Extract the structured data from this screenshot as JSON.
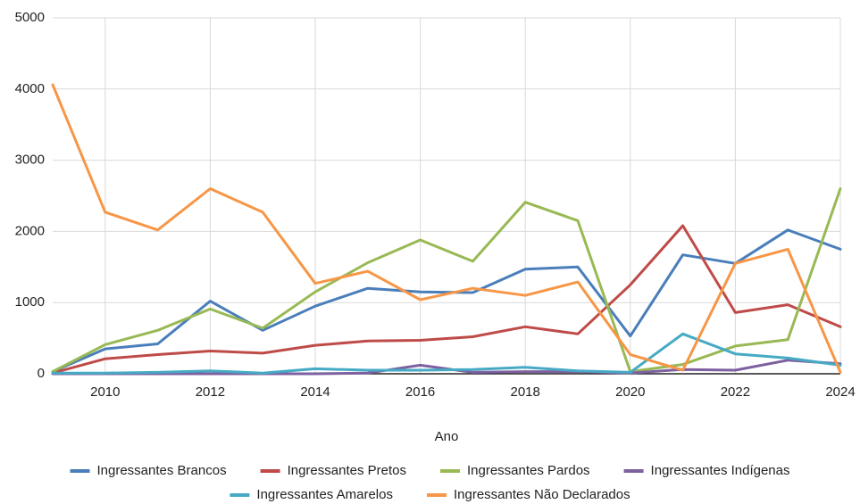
{
  "chart_data": {
    "type": "line",
    "x": [
      2009,
      2010,
      2011,
      2012,
      2013,
      2014,
      2015,
      2016,
      2017,
      2018,
      2019,
      2020,
      2021,
      2022,
      2023,
      2024
    ],
    "x_label": "Ano",
    "series": [
      {
        "name": "Ingressantes Brancos",
        "color": "#4a7ebb",
        "values": [
          30,
          350,
          420,
          1020,
          610,
          950,
          1200,
          1150,
          1140,
          1470,
          1500,
          530,
          1670,
          1550,
          2020,
          1750
        ]
      },
      {
        "name": "Ingressantes Pretos",
        "color": "#be4b48",
        "values": [
          10,
          210,
          270,
          320,
          290,
          400,
          460,
          470,
          520,
          660,
          560,
          1250,
          2080,
          860,
          970,
          660
        ]
      },
      {
        "name": "Ingressantes Pardos",
        "color": "#98b954",
        "values": [
          30,
          410,
          610,
          910,
          640,
          1150,
          1560,
          1880,
          1580,
          2410,
          2150,
          30,
          130,
          390,
          480,
          2600
        ]
      },
      {
        "name": "Ingressantes Indígenas",
        "color": "#7d60a0",
        "values": [
          0,
          0,
          0,
          0,
          0,
          0,
          10,
          120,
          20,
          30,
          30,
          10,
          60,
          50,
          190,
          140
        ]
      },
      {
        "name": "Ingressantes Amarelos",
        "color": "#46aac5",
        "values": [
          10,
          10,
          20,
          40,
          10,
          70,
          50,
          50,
          60,
          90,
          40,
          20,
          560,
          280,
          220,
          120
        ]
      },
      {
        "name": "Ingressantes Não Declarados",
        "color": "#f79646",
        "values": [
          4060,
          2270,
          2020,
          2600,
          2270,
          1270,
          1440,
          1040,
          1200,
          1100,
          1290,
          270,
          50,
          1550,
          1750,
          20
        ]
      }
    ],
    "xlim": [
      2009,
      2024
    ],
    "xticks": [
      2010,
      2012,
      2014,
      2016,
      2018,
      2020,
      2022,
      2024
    ],
    "ylim": [
      0,
      5000
    ],
    "yticks": [
      0,
      1000,
      2000,
      3000,
      4000,
      5000
    ],
    "grid": true,
    "legend": "bottom"
  }
}
